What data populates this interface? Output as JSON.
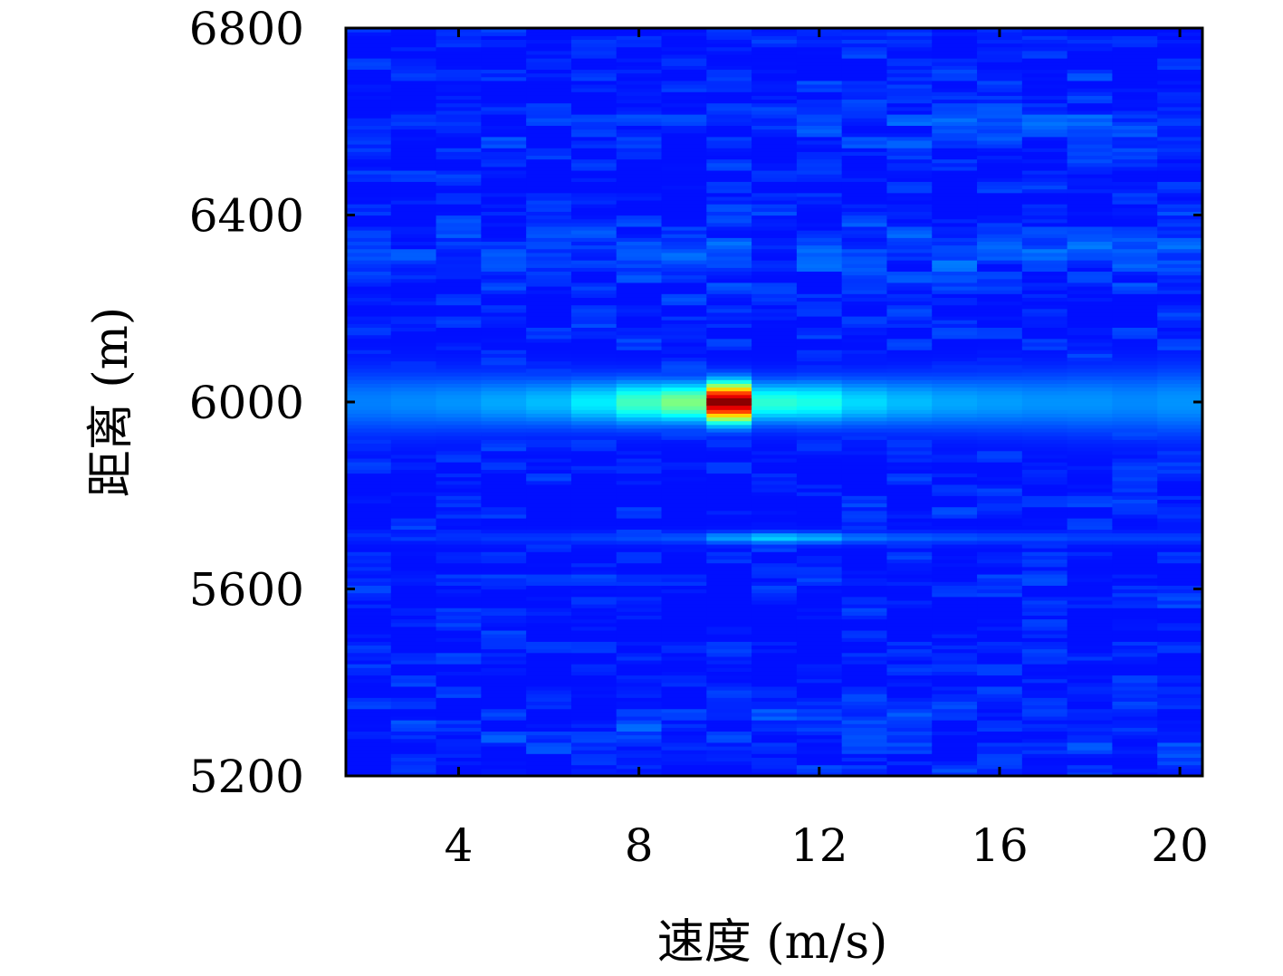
{
  "chart_data": {
    "type": "heatmap",
    "xlabel": "速度 (m/s)",
    "ylabel": "距离 (m)",
    "xlim": [
      1.5,
      20.5
    ],
    "ylim": [
      5200,
      6800
    ],
    "xticks": [
      4,
      8,
      12,
      16,
      20
    ],
    "yticks": [
      5200,
      5600,
      6000,
      6400,
      6800
    ],
    "xtick_labels": [
      "4",
      "8",
      "12",
      "16",
      "20"
    ],
    "ytick_labels": [
      "5200",
      "5600",
      "6000",
      "6400",
      "6800"
    ],
    "grid": false,
    "colormap": "jet",
    "velocity_bins": [
      2,
      3,
      4,
      5,
      6,
      7,
      8,
      9,
      10,
      11,
      12,
      13,
      14,
      15,
      16,
      17,
      18,
      19,
      20
    ],
    "peak": {
      "velocity": 10,
      "range": 6000,
      "value": 1.0,
      "color": "#8b0000"
    },
    "ridge": {
      "range": 6000,
      "values": [
        0.25,
        0.26,
        0.27,
        0.29,
        0.31,
        0.36,
        0.44,
        0.5,
        1.0,
        0.42,
        0.4,
        0.34,
        0.31,
        0.29,
        0.28,
        0.27,
        0.27,
        0.26,
        0.27
      ]
    },
    "secondary_ridge": {
      "range": 5710,
      "values": [
        0.16,
        0.16,
        0.17,
        0.18,
        0.18,
        0.19,
        0.2,
        0.21,
        0.28,
        0.33,
        0.3,
        0.24,
        0.22,
        0.21,
        0.2,
        0.2,
        0.19,
        0.19,
        0.19
      ]
    },
    "background_level": 0.14
  }
}
